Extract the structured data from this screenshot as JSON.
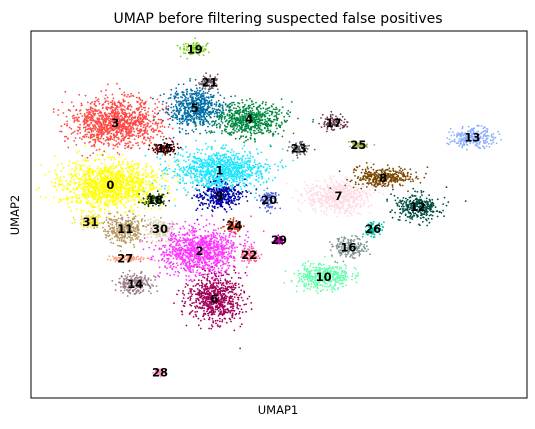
{
  "chart_data": {
    "type": "scatter",
    "title": "UMAP before filtering suspected false positives",
    "xlabel": "UMAP1",
    "ylabel": "UMAP2",
    "xlim": [
      0,
      100
    ],
    "ylim": [
      0,
      100
    ],
    "show_ticks": false,
    "grid": false,
    "legend": "on data",
    "clusters": [
      {
        "label": "0",
        "color": "#ffff00",
        "x": 16,
        "y": 58,
        "rx": 11,
        "ry": 7
      },
      {
        "label": "1",
        "color": "#1ce6ff",
        "x": 38,
        "y": 62,
        "rx": 10,
        "ry": 6
      },
      {
        "label": "2",
        "color": "#ff34ff",
        "x": 34,
        "y": 40,
        "rx": 9,
        "ry": 7
      },
      {
        "label": "3",
        "color": "#ff4a46",
        "x": 17,
        "y": 75,
        "rx": 10,
        "ry": 7
      },
      {
        "label": "4",
        "color": "#008941",
        "x": 44,
        "y": 76,
        "rx": 8,
        "ry": 5
      },
      {
        "label": "5",
        "color": "#006fa6",
        "x": 33,
        "y": 79,
        "rx": 6,
        "ry": 6
      },
      {
        "label": "6",
        "color": "#a30059",
        "x": 37,
        "y": 27,
        "rx": 6,
        "ry": 7
      },
      {
        "label": "7",
        "color": "#ffdbe5",
        "x": 62,
        "y": 55,
        "rx": 7,
        "ry": 5
      },
      {
        "label": "8",
        "color": "#7a4900",
        "x": 71,
        "y": 60,
        "rx": 7,
        "ry": 3
      },
      {
        "label": "9",
        "color": "#0000a6",
        "x": 38,
        "y": 55,
        "rx": 5,
        "ry": 4
      },
      {
        "label": "10",
        "color": "#63ffac",
        "x": 59,
        "y": 33,
        "rx": 6,
        "ry": 4
      },
      {
        "label": "11",
        "color": "#b79762",
        "x": 19,
        "y": 46,
        "rx": 5,
        "ry": 4
      },
      {
        "label": "12",
        "color": "#004d43",
        "x": 78,
        "y": 52,
        "rx": 5,
        "ry": 4
      },
      {
        "label": "13",
        "color": "#8fb0ff",
        "x": 89,
        "y": 71,
        "rx": 5,
        "ry": 3
      },
      {
        "label": "14",
        "color": "#997d87",
        "x": 21,
        "y": 31,
        "rx": 4,
        "ry": 3
      },
      {
        "label": "15",
        "color": "#5a0007",
        "x": 27,
        "y": 68,
        "rx": 3,
        "ry": 2
      },
      {
        "label": "16",
        "color": "#809693",
        "x": 64,
        "y": 41,
        "rx": 4,
        "ry": 3
      },
      {
        "label": "17",
        "color": "#6a3a4c",
        "x": 61,
        "y": 75,
        "rx": 3,
        "ry": 2
      },
      {
        "label": "18",
        "color": "#1b4400",
        "x": 25,
        "y": 54,
        "rx": 3,
        "ry": 2
      },
      {
        "label": "19",
        "color": "#7ed321",
        "x": 33,
        "y": 95,
        "rx": 3,
        "ry": 2
      },
      {
        "label": "20",
        "color": "#4f66d9",
        "x": 48,
        "y": 54,
        "rx": 2,
        "ry": 3
      },
      {
        "label": "21",
        "color": "#6e5a60",
        "x": 36,
        "y": 86,
        "rx": 2,
        "ry": 2
      },
      {
        "label": "22",
        "color": "#ff6680",
        "x": 44,
        "y": 39,
        "rx": 2,
        "ry": 2
      },
      {
        "label": "23",
        "color": "#636375",
        "x": 54,
        "y": 68,
        "rx": 2,
        "ry": 2
      },
      {
        "label": "24",
        "color": "#d13a1f",
        "x": 41,
        "y": 47,
        "rx": 2,
        "ry": 2
      },
      {
        "label": "25",
        "color": "#a9b14f",
        "x": 66,
        "y": 69,
        "rx": 2,
        "ry": 1
      },
      {
        "label": "26",
        "color": "#00c2a0",
        "x": 69,
        "y": 46,
        "rx": 2,
        "ry": 2
      },
      {
        "label": "28",
        "color": "#ff90c9",
        "x": 26,
        "y": 7,
        "rx": 1,
        "ry": 1
      },
      {
        "label": "29",
        "color": "#b903aa",
        "x": 50,
        "y": 43,
        "rx": 1,
        "ry": 1
      },
      {
        "label": "30",
        "color": "#ddd6b8",
        "x": 26,
        "y": 46,
        "rx": 3,
        "ry": 3
      },
      {
        "label": "31",
        "color": "#f1e340",
        "x": 12,
        "y": 48,
        "rx": 3,
        "ry": 2
      },
      {
        "label": "27",
        "color": "#ffa07a",
        "x": 19,
        "y": 38,
        "rx": 4,
        "ry": 1
      }
    ]
  }
}
